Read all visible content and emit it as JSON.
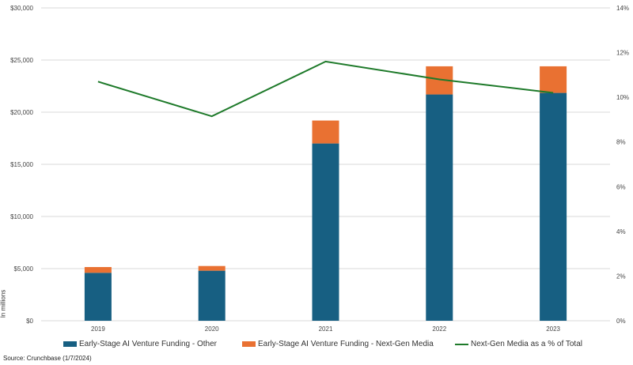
{
  "chart_data": {
    "type": "bar",
    "stacked": true,
    "categories": [
      "2019",
      "2020",
      "2021",
      "2022",
      "2023"
    ],
    "series": [
      {
        "name": "Early-Stage AI Venture Funding - Other",
        "type": "bar",
        "axis": "left",
        "color": "#175f82",
        "values": [
          4600,
          4800,
          17000,
          21700,
          21850
        ]
      },
      {
        "name": "Early-Stage AI Venture Funding - Next-Gen Media",
        "type": "bar",
        "axis": "left",
        "color": "#e97132",
        "values": [
          550,
          450,
          2200,
          2700,
          2550
        ]
      },
      {
        "name": "Next-Gen Media as a % of Total",
        "type": "line",
        "axis": "right",
        "color": "#1e7a2a",
        "values": [
          10.7,
          9.15,
          11.6,
          10.8,
          10.2
        ]
      }
    ],
    "ylabel": "In millions",
    "ylim": [
      0,
      30000
    ],
    "y_ticks": [
      "$0",
      "$5,000",
      "$10,000",
      "$15,000",
      "$20,000",
      "$25,000",
      "$30,000"
    ],
    "y2lim": [
      0,
      14
    ],
    "y2_ticks": [
      "0%",
      "2%",
      "4%",
      "6%",
      "8%",
      "10%",
      "12%",
      "14%"
    ],
    "grid": true,
    "legend": "bottom",
    "source": "Source: Crunchbase (1/7/2024)"
  }
}
